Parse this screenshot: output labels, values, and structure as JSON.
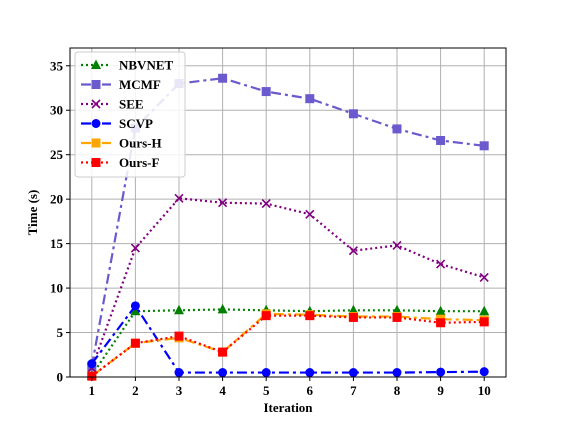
{
  "chart_data": {
    "type": "line",
    "xlabel": "Iteration",
    "ylabel": "Time (s)",
    "x": [
      1,
      2,
      3,
      4,
      5,
      6,
      7,
      8,
      9,
      10
    ],
    "xlim": [
      0.5,
      10.5
    ],
    "ylim": [
      0,
      37
    ],
    "yticks": [
      0,
      5,
      10,
      15,
      20,
      25,
      30,
      35
    ],
    "grid": true,
    "legend_position": "top-left",
    "series": [
      {
        "name": "NBVNET",
        "color": "#008000",
        "linestyle": "dotted",
        "marker": "triangle",
        "values": [
          0.2,
          7.4,
          7.5,
          7.6,
          7.5,
          7.4,
          7.5,
          7.5,
          7.4,
          7.4
        ]
      },
      {
        "name": "MCMF",
        "color": "#6a5acd",
        "linestyle": "dashdot",
        "marker": "square",
        "values": [
          1.2,
          28.0,
          33.0,
          33.6,
          32.1,
          31.3,
          29.6,
          27.9,
          26.6,
          26.0
        ]
      },
      {
        "name": "SEE",
        "color": "#800080",
        "linestyle": "dotted",
        "marker": "x",
        "values": [
          1.0,
          14.5,
          20.1,
          19.6,
          19.5,
          18.3,
          14.2,
          14.8,
          12.7,
          11.2
        ]
      },
      {
        "name": "SCVP",
        "color": "#0000ff",
        "linestyle": "dashdot",
        "marker": "circle",
        "values": [
          1.5,
          8.0,
          0.5,
          0.5,
          0.5,
          0.5,
          0.5,
          0.5,
          0.55,
          0.6
        ]
      },
      {
        "name": "Ours-H",
        "color": "#ffa500",
        "linestyle": "dashdot",
        "marker": "square",
        "values": [
          0.1,
          3.8,
          4.4,
          2.8,
          7.1,
          7.0,
          6.8,
          6.8,
          6.5,
          6.4
        ]
      },
      {
        "name": "Ours-F",
        "color": "#ff0000",
        "linestyle": "dotted",
        "marker": "square",
        "values": [
          0.1,
          3.8,
          4.6,
          2.8,
          6.9,
          6.9,
          6.7,
          6.7,
          6.1,
          6.2
        ]
      }
    ]
  }
}
